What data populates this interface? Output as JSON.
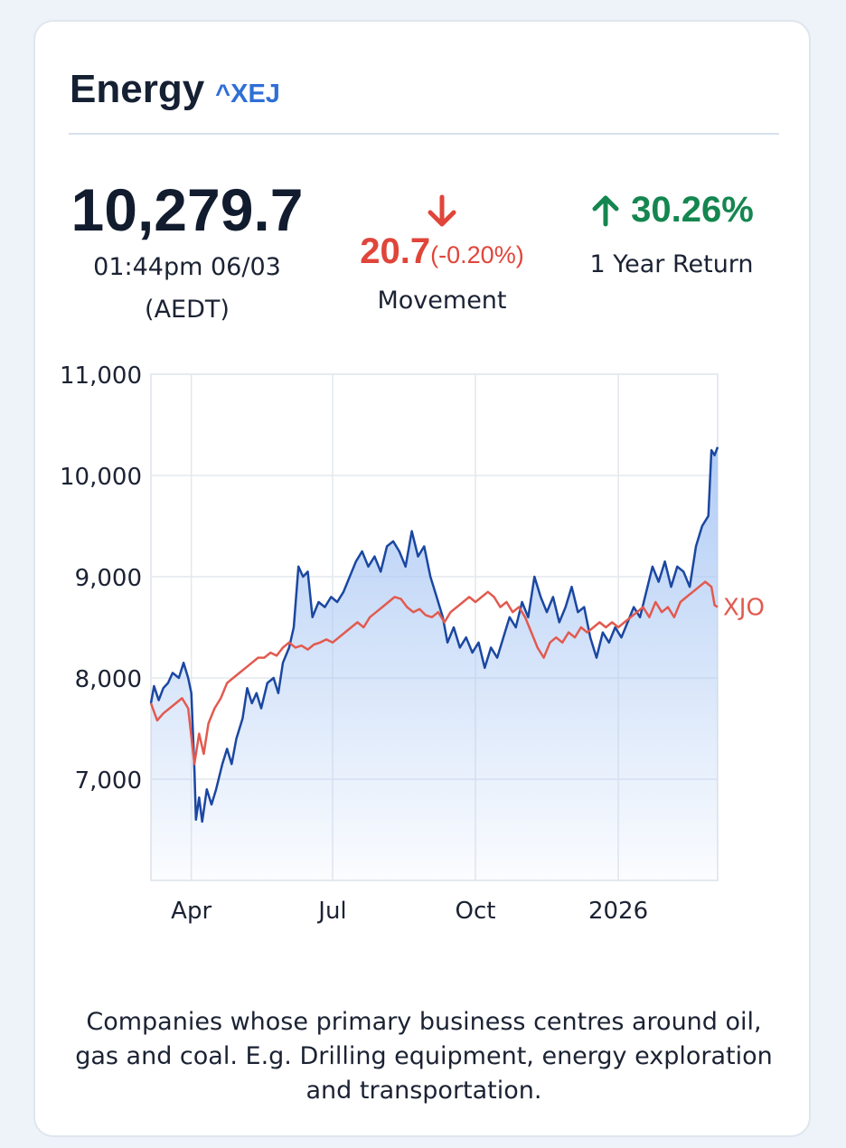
{
  "header": {
    "title": "Energy",
    "ticker": "^XEJ"
  },
  "price": {
    "value": "10,279.7",
    "time": "01:44pm 06/03",
    "timezone": "(AEDT)"
  },
  "movement": {
    "direction_icon": "arrow-down-icon",
    "value": "20.7",
    "percent": "(-0.20%)",
    "label": "Movement"
  },
  "one_year_return": {
    "direction_icon": "arrow-up-icon",
    "value": "30.26%",
    "label": "1 Year Return"
  },
  "colors": {
    "xej_line": "#1b47a1",
    "xjo_line": "#e25a4f",
    "area_fill": "#a9c7f4",
    "positive": "#14864f",
    "negative": "#e0453a",
    "ticker": "#2f6fd6"
  },
  "chart_data": {
    "type": "line",
    "ylim": [
      6000,
      11000
    ],
    "grid": true,
    "y_ticks": [
      {
        "value": 11000,
        "label": "11,000"
      },
      {
        "value": 10000,
        "label": "10,000"
      },
      {
        "value": 9000,
        "label": "9,000"
      },
      {
        "value": 8000,
        "label": "8,000"
      },
      {
        "value": 7000,
        "label": "7,000"
      }
    ],
    "x_range": [
      "2025-03-06",
      "2026-03-06"
    ],
    "x_ticks": [
      {
        "date": "2025-04-01",
        "label": "Apr"
      },
      {
        "date": "2025-07-01",
        "label": "Jul"
      },
      {
        "date": "2025-10-01",
        "label": "Oct"
      },
      {
        "date": "2026-01-01",
        "label": "2026"
      }
    ],
    "series": [
      {
        "name": "",
        "style": "area",
        "points": [
          [
            "2025-03-06",
            7750
          ],
          [
            "2025-03-08",
            7920
          ],
          [
            "2025-03-11",
            7780
          ],
          [
            "2025-03-14",
            7900
          ],
          [
            "2025-03-17",
            7950
          ],
          [
            "2025-03-20",
            8050
          ],
          [
            "2025-03-24",
            8000
          ],
          [
            "2025-03-27",
            8150
          ],
          [
            "2025-03-30",
            8000
          ],
          [
            "2025-04-01",
            7850
          ],
          [
            "2025-04-03",
            7100
          ],
          [
            "2025-04-04",
            6600
          ],
          [
            "2025-04-06",
            6820
          ],
          [
            "2025-04-08",
            6580
          ],
          [
            "2025-04-11",
            6900
          ],
          [
            "2025-04-14",
            6750
          ],
          [
            "2025-04-17",
            6900
          ],
          [
            "2025-04-21",
            7150
          ],
          [
            "2025-04-24",
            7300
          ],
          [
            "2025-04-27",
            7150
          ],
          [
            "2025-04-30",
            7400
          ],
          [
            "2025-05-04",
            7600
          ],
          [
            "2025-05-07",
            7900
          ],
          [
            "2025-05-10",
            7750
          ],
          [
            "2025-05-13",
            7850
          ],
          [
            "2025-05-16",
            7700
          ],
          [
            "2025-05-20",
            7950
          ],
          [
            "2025-05-24",
            8000
          ],
          [
            "2025-05-27",
            7850
          ],
          [
            "2025-05-30",
            8150
          ],
          [
            "2025-06-03",
            8300
          ],
          [
            "2025-06-06",
            8500
          ],
          [
            "2025-06-09",
            9100
          ],
          [
            "2025-06-12",
            9000
          ],
          [
            "2025-06-15",
            9050
          ],
          [
            "2025-06-18",
            8600
          ],
          [
            "2025-06-22",
            8750
          ],
          [
            "2025-06-26",
            8700
          ],
          [
            "2025-06-30",
            8800
          ],
          [
            "2025-07-04",
            8750
          ],
          [
            "2025-07-08",
            8850
          ],
          [
            "2025-07-12",
            9000
          ],
          [
            "2025-07-16",
            9150
          ],
          [
            "2025-07-20",
            9250
          ],
          [
            "2025-07-24",
            9100
          ],
          [
            "2025-07-28",
            9200
          ],
          [
            "2025-08-01",
            9050
          ],
          [
            "2025-08-05",
            9300
          ],
          [
            "2025-08-09",
            9350
          ],
          [
            "2025-08-13",
            9250
          ],
          [
            "2025-08-17",
            9100
          ],
          [
            "2025-08-21",
            9450
          ],
          [
            "2025-08-25",
            9200
          ],
          [
            "2025-08-29",
            9300
          ],
          [
            "2025-09-02",
            9000
          ],
          [
            "2025-09-06",
            8800
          ],
          [
            "2025-09-10",
            8600
          ],
          [
            "2025-09-13",
            8350
          ],
          [
            "2025-09-17",
            8500
          ],
          [
            "2025-09-21",
            8300
          ],
          [
            "2025-09-25",
            8400
          ],
          [
            "2025-09-29",
            8250
          ],
          [
            "2025-10-03",
            8350
          ],
          [
            "2025-10-07",
            8100
          ],
          [
            "2025-10-11",
            8300
          ],
          [
            "2025-10-15",
            8200
          ],
          [
            "2025-10-19",
            8400
          ],
          [
            "2025-10-23",
            8600
          ],
          [
            "2025-10-27",
            8500
          ],
          [
            "2025-10-31",
            8750
          ],
          [
            "2025-11-04",
            8600
          ],
          [
            "2025-11-08",
            9000
          ],
          [
            "2025-11-12",
            8800
          ],
          [
            "2025-11-16",
            8650
          ],
          [
            "2025-11-20",
            8800
          ],
          [
            "2025-11-24",
            8550
          ],
          [
            "2025-11-28",
            8700
          ],
          [
            "2025-12-02",
            8900
          ],
          [
            "2025-12-06",
            8650
          ],
          [
            "2025-12-10",
            8700
          ],
          [
            "2025-12-14",
            8400
          ],
          [
            "2025-12-18",
            8200
          ],
          [
            "2025-12-22",
            8450
          ],
          [
            "2025-12-26",
            8350
          ],
          [
            "2025-12-30",
            8500
          ],
          [
            "2026-01-03",
            8400
          ],
          [
            "2026-01-07",
            8550
          ],
          [
            "2026-01-11",
            8700
          ],
          [
            "2026-01-15",
            8600
          ],
          [
            "2026-01-19",
            8850
          ],
          [
            "2026-01-23",
            9100
          ],
          [
            "2026-01-27",
            8950
          ],
          [
            "2026-01-31",
            9150
          ],
          [
            "2026-02-04",
            8900
          ],
          [
            "2026-02-08",
            9100
          ],
          [
            "2026-02-12",
            9050
          ],
          [
            "2026-02-16",
            8900
          ],
          [
            "2026-02-20",
            9300
          ],
          [
            "2026-02-24",
            9500
          ],
          [
            "2026-02-28",
            9600
          ],
          [
            "2026-03-02",
            10250
          ],
          [
            "2026-03-04",
            10200
          ],
          [
            "2026-03-06",
            10280
          ]
        ]
      },
      {
        "name": "XJO",
        "style": "line",
        "points": [
          [
            "2025-03-06",
            7750
          ],
          [
            "2025-03-10",
            7580
          ],
          [
            "2025-03-14",
            7650
          ],
          [
            "2025-03-18",
            7700
          ],
          [
            "2025-03-22",
            7750
          ],
          [
            "2025-03-26",
            7800
          ],
          [
            "2025-03-30",
            7700
          ],
          [
            "2025-04-03",
            7150
          ],
          [
            "2025-04-06",
            7450
          ],
          [
            "2025-04-09",
            7250
          ],
          [
            "2025-04-12",
            7550
          ],
          [
            "2025-04-16",
            7700
          ],
          [
            "2025-04-20",
            7800
          ],
          [
            "2025-04-24",
            7950
          ],
          [
            "2025-04-28",
            8000
          ],
          [
            "2025-05-02",
            8050
          ],
          [
            "2025-05-06",
            8100
          ],
          [
            "2025-05-10",
            8150
          ],
          [
            "2025-05-14",
            8200
          ],
          [
            "2025-05-18",
            8200
          ],
          [
            "2025-05-22",
            8250
          ],
          [
            "2025-05-26",
            8220
          ],
          [
            "2025-05-30",
            8300
          ],
          [
            "2025-06-03",
            8350
          ],
          [
            "2025-06-07",
            8300
          ],
          [
            "2025-06-11",
            8320
          ],
          [
            "2025-06-15",
            8280
          ],
          [
            "2025-06-19",
            8330
          ],
          [
            "2025-06-23",
            8350
          ],
          [
            "2025-06-27",
            8380
          ],
          [
            "2025-07-01",
            8350
          ],
          [
            "2025-07-05",
            8400
          ],
          [
            "2025-07-09",
            8450
          ],
          [
            "2025-07-13",
            8500
          ],
          [
            "2025-07-17",
            8550
          ],
          [
            "2025-07-21",
            8500
          ],
          [
            "2025-07-25",
            8600
          ],
          [
            "2025-07-29",
            8650
          ],
          [
            "2025-08-02",
            8700
          ],
          [
            "2025-08-06",
            8750
          ],
          [
            "2025-08-10",
            8800
          ],
          [
            "2025-08-14",
            8780
          ],
          [
            "2025-08-18",
            8700
          ],
          [
            "2025-08-22",
            8650
          ],
          [
            "2025-08-26",
            8680
          ],
          [
            "2025-08-30",
            8620
          ],
          [
            "2025-09-03",
            8600
          ],
          [
            "2025-09-07",
            8650
          ],
          [
            "2025-09-11",
            8550
          ],
          [
            "2025-09-15",
            8650
          ],
          [
            "2025-09-19",
            8700
          ],
          [
            "2025-09-23",
            8750
          ],
          [
            "2025-09-27",
            8800
          ],
          [
            "2025-10-01",
            8750
          ],
          [
            "2025-10-05",
            8800
          ],
          [
            "2025-10-09",
            8850
          ],
          [
            "2025-10-13",
            8800
          ],
          [
            "2025-10-17",
            8700
          ],
          [
            "2025-10-21",
            8750
          ],
          [
            "2025-10-25",
            8650
          ],
          [
            "2025-10-29",
            8700
          ],
          [
            "2025-11-02",
            8600
          ],
          [
            "2025-11-06",
            8450
          ],
          [
            "2025-11-10",
            8300
          ],
          [
            "2025-11-14",
            8200
          ],
          [
            "2025-11-18",
            8350
          ],
          [
            "2025-11-22",
            8400
          ],
          [
            "2025-11-26",
            8350
          ],
          [
            "2025-11-30",
            8450
          ],
          [
            "2025-12-04",
            8400
          ],
          [
            "2025-12-08",
            8500
          ],
          [
            "2025-12-12",
            8450
          ],
          [
            "2025-12-16",
            8500
          ],
          [
            "2025-12-20",
            8550
          ],
          [
            "2025-12-24",
            8500
          ],
          [
            "2025-12-28",
            8550
          ],
          [
            "2026-01-01",
            8500
          ],
          [
            "2026-01-05",
            8550
          ],
          [
            "2026-01-09",
            8600
          ],
          [
            "2026-01-13",
            8650
          ],
          [
            "2026-01-17",
            8700
          ],
          [
            "2026-01-21",
            8600
          ],
          [
            "2026-01-25",
            8750
          ],
          [
            "2026-01-29",
            8650
          ],
          [
            "2026-02-02",
            8700
          ],
          [
            "2026-02-06",
            8600
          ],
          [
            "2026-02-10",
            8750
          ],
          [
            "2026-02-14",
            8800
          ],
          [
            "2026-02-18",
            8850
          ],
          [
            "2026-02-22",
            8900
          ],
          [
            "2026-02-26",
            8950
          ],
          [
            "2026-03-02",
            8900
          ],
          [
            "2026-03-04",
            8720
          ],
          [
            "2026-03-06",
            8700
          ]
        ]
      }
    ]
  },
  "description": "Companies whose primary business centres around oil, gas and coal. E.g. Drilling equipment, energy exploration and transportation."
}
